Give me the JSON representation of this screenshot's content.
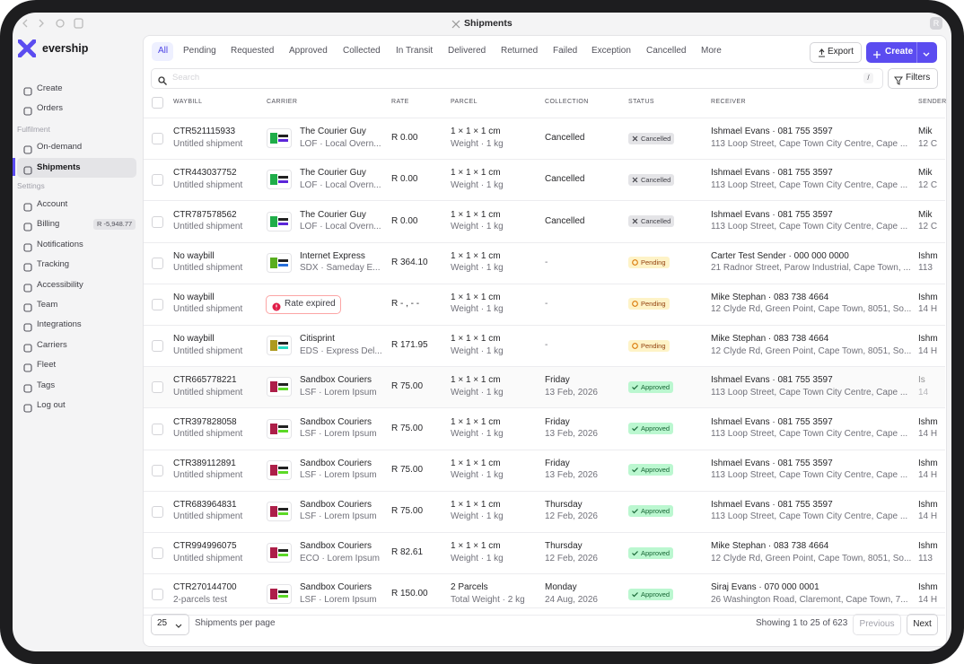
{
  "window": {
    "title": "Shipments",
    "avatar": "R"
  },
  "sidebar": {
    "brand": "evership",
    "top_items": [
      "Create",
      "Orders"
    ],
    "sections": [
      {
        "label": "Fulfilment",
        "items": [
          "On-demand",
          "Shipments"
        ]
      },
      {
        "label": "Settings",
        "items": [
          "Account",
          "Billing",
          "Notifications",
          "Tracking",
          "Accessibility",
          "Team",
          "Integrations",
          "Carriers",
          "Fleet",
          "Tags",
          "Log out"
        ]
      }
    ],
    "billing_badge": "R -5,948.77"
  },
  "tabs": [
    "All",
    "Pending",
    "Requested",
    "Approved",
    "Collected",
    "In Transit",
    "Delivered",
    "Returned",
    "Failed",
    "Exception",
    "Cancelled",
    "More"
  ],
  "buttons": {
    "export": "Export",
    "create": "Create",
    "filters": "Filters"
  },
  "search": {
    "placeholder": "Search",
    "shortcut": "/"
  },
  "table": {
    "columns": [
      "WAYBILL",
      "CARRIER",
      "RATE",
      "PARCEL",
      "COLLECTION",
      "STATUS",
      "RECEIVER",
      "SENDER"
    ],
    "rows": [
      {
        "waybill": "CTR521115933",
        "note": "Untitled shipment",
        "carrier": "The Courier Guy",
        "service": "LOF · Local Overn...",
        "rate": "R 0.00",
        "parcel": "1 × 1 × 1 cm",
        "weight": "Weight · 1 kg",
        "collection": [
          "Cancelled"
        ],
        "status": "Cancelled",
        "receiver": "Ishmael Evans · 081 755 3597",
        "address": "113 Loop Street, Cape Town City Centre, Cape ...",
        "sender": "Mik",
        "sender_address": "12 C"
      },
      {
        "waybill": "CTR443037752",
        "note": "Untitled shipment",
        "carrier": "The Courier Guy",
        "service": "LOF · Local Overn...",
        "rate": "R 0.00",
        "parcel": "1 × 1 × 1 cm",
        "weight": "Weight · 1 kg",
        "collection": [
          "Cancelled"
        ],
        "status": "Cancelled",
        "receiver": "Ishmael Evans · 081 755 3597",
        "address": "113 Loop Street, Cape Town City Centre, Cape ...",
        "sender": "Mik",
        "sender_address": "12 C"
      },
      {
        "waybill": "CTR787578562",
        "note": "Untitled shipment",
        "carrier": "The Courier Guy",
        "service": "LOF · Local Overn...",
        "rate": "R 0.00",
        "parcel": "1 × 1 × 1 cm",
        "weight": "Weight · 1 kg",
        "collection": [
          "Cancelled"
        ],
        "status": "Cancelled",
        "receiver": "Ishmael Evans · 081 755 3597",
        "address": "113 Loop Street, Cape Town City Centre, Cape ...",
        "sender": "Mik",
        "sender_address": "12 C"
      },
      {
        "waybill": "No waybill",
        "note": "Untitled shipment",
        "carrier": "Internet Express",
        "service": "SDX · Sameday E...",
        "rate": "R 364.10",
        "parcel": "1 × 1 × 1 cm",
        "weight": "Weight · 1 kg",
        "collection": [
          "-"
        ],
        "status": "Pending",
        "receiver": "Carter Test Sender · 000 000 0000",
        "address": "21 Radnor Street, Parow Industrial, Cape Town, ...",
        "sender": "Ishm",
        "sender_address": "113"
      },
      {
        "waybill": "No waybill",
        "note": "Untitled shipment",
        "carrier_badge": "Rate expired",
        "rate": "R - , - -",
        "parcel": "1 × 1 × 1 cm",
        "weight": "Weight · 1 kg",
        "collection": [
          "-"
        ],
        "status": "Pending",
        "receiver": "Mike Stephan · 083 738 4664",
        "address": "12 Clyde Rd, Green Point, Cape Town, 8051, So...",
        "sender": "Ishm",
        "sender_address": "14 H"
      },
      {
        "waybill": "No waybill",
        "note": "Untitled shipment",
        "carrier": "Citisprint",
        "service": "EDS · Express Del...",
        "rate": "R 171.95",
        "parcel": "1 × 1 × 1 cm",
        "weight": "Weight · 1 kg",
        "collection": [
          "-"
        ],
        "status": "Pending",
        "receiver": "Mike Stephan · 083 738 4664",
        "address": "12 Clyde Rd, Green Point, Cape Town, 8051, So...",
        "sender": "Ishm",
        "sender_address": "14 H"
      },
      {
        "waybill": "CTR665778221",
        "note": "Untitled shipment",
        "carrier": "Sandbox Couriers",
        "service": "LSF · Lorem Ipsum",
        "rate": "R 75.00",
        "parcel": "1 × 1 × 1 cm",
        "weight": "Weight · 1 kg",
        "collection": [
          "Friday",
          "13 Feb, 2026"
        ],
        "status": "Approved",
        "receiver": "Ishmael Evans · 081 755 3597",
        "address": "113 Loop Street, Cape Town City Centre, Cape ...",
        "sender": "Is",
        "sender_address": "14"
      },
      {
        "waybill": "CTR397828058",
        "note": "Untitled shipment",
        "carrier": "Sandbox Couriers",
        "service": "LSF · Lorem Ipsum",
        "rate": "R 75.00",
        "parcel": "1 × 1 × 1 cm",
        "weight": "Weight · 1 kg",
        "collection": [
          "Friday",
          "13 Feb, 2026"
        ],
        "status": "Approved",
        "receiver": "Ishmael Evans · 081 755 3597",
        "address": "113 Loop Street, Cape Town City Centre, Cape ...",
        "sender": "Ishm",
        "sender_address": "14 H"
      },
      {
        "waybill": "CTR389112891",
        "note": "Untitled shipment",
        "carrier": "Sandbox Couriers",
        "service": "LSF · Lorem Ipsum",
        "rate": "R 75.00",
        "parcel": "1 × 1 × 1 cm",
        "weight": "Weight · 1 kg",
        "collection": [
          "Friday",
          "13 Feb, 2026"
        ],
        "status": "Approved",
        "receiver": "Ishmael Evans · 081 755 3597",
        "address": "113 Loop Street, Cape Town City Centre, Cape ...",
        "sender": "Ishm",
        "sender_address": "14 H"
      },
      {
        "waybill": "CTR683964831",
        "note": "Untitled shipment",
        "carrier": "Sandbox Couriers",
        "service": "LSF · Lorem Ipsum",
        "rate": "R 75.00",
        "parcel": "1 × 1 × 1 cm",
        "weight": "Weight · 1 kg",
        "collection": [
          "Thursday",
          "12 Feb, 2026"
        ],
        "status": "Approved",
        "receiver": "Ishmael Evans · 081 755 3597",
        "address": "113 Loop Street, Cape Town City Centre, Cape ...",
        "sender": "Ishm",
        "sender_address": "14 H"
      },
      {
        "waybill": "CTR994996075",
        "note": "Untitled shipment",
        "carrier": "Sandbox Couriers",
        "service": "ECO · Lorem Ipsum",
        "rate": "R 82.61",
        "parcel": "1 × 1 × 1 cm",
        "weight": "Weight · 1 kg",
        "collection": [
          "Thursday",
          "12 Feb, 2026"
        ],
        "status": "Approved",
        "receiver": "Mike Stephan · 083 738 4664",
        "address": "12 Clyde Rd, Green Point, Cape Town, 8051, So...",
        "sender": "Ishm",
        "sender_address": "113"
      },
      {
        "waybill": "CTR270144700",
        "note": "2-parcels test",
        "carrier": "Sandbox Couriers",
        "service": "LSF · Lorem Ipsum",
        "rate": "R 150.00",
        "parcel": "2 Parcels",
        "weight": "Total Weight · 2 kg",
        "collection": [
          "Monday",
          "24 Aug, 2026"
        ],
        "status": "Approved",
        "receiver": "Siraj Evans · 070 000 0001",
        "address": "26 Washington Road, Claremont, Cape Town, 7...",
        "sender": "Ishm",
        "sender_address": "14 H"
      }
    ]
  },
  "footer": {
    "per_page": "25",
    "per_page_label": "Shipments per page",
    "showing": "Showing 1 to 25 of 623",
    "previous": "Previous",
    "next": "Next"
  }
}
